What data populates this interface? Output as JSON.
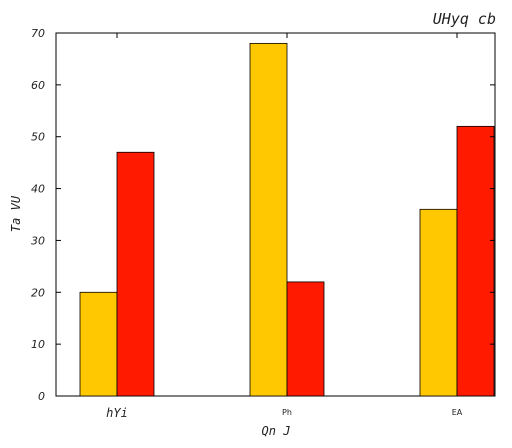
{
  "chart_data": {
    "type": "bar",
    "title": "UHyq cb",
    "xlabel": "Qn  J",
    "ylabel": "Ta VU",
    "categories": [
      "hYi",
      "Ph",
      "EA"
    ],
    "series": [
      {
        "values": [
          20,
          68,
          36
        ],
        "color": "#ffc800"
      },
      {
        "values": [
          47,
          22,
          52
        ],
        "color": "#ff1a00"
      }
    ],
    "ylim": [
      0,
      70
    ],
    "yticks": [
      0,
      10,
      20,
      30,
      40,
      50,
      60,
      70
    ],
    "grid": false
  }
}
